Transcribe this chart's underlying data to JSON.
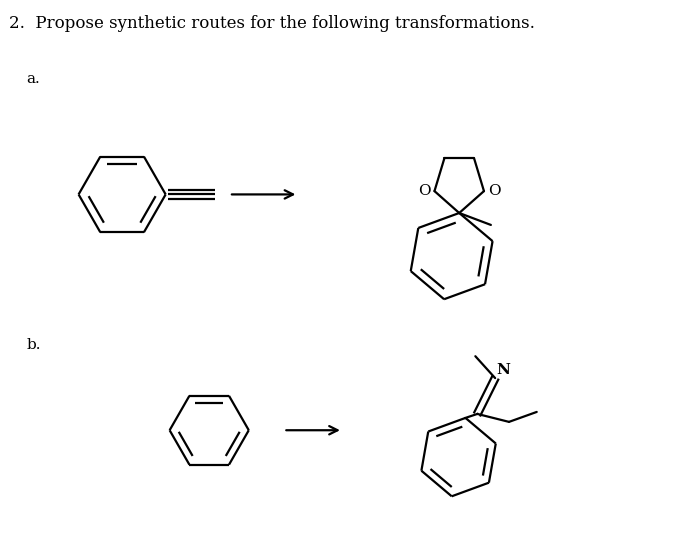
{
  "title": "2.  Propose synthetic routes for the following transformations.",
  "title_fontsize": 12,
  "label_a": "a.",
  "label_b": "b.",
  "background_color": "#ffffff",
  "line_color": "#000000",
  "line_width": 1.6,
  "text_color": "#000000"
}
